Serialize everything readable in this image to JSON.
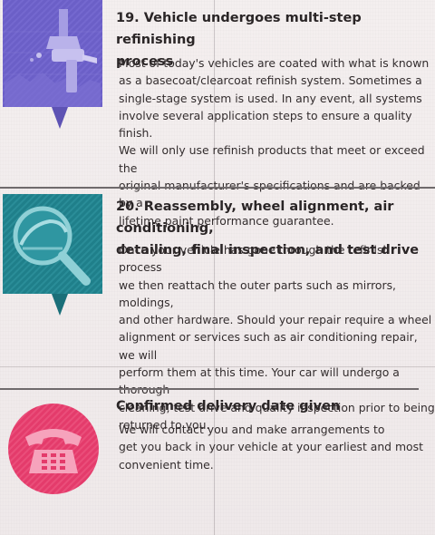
{
  "steps": [
    {
      "heading_line1": "19. Vehicle undergoes multi-step refinishing",
      "heading_line2": "process",
      "body_lines": [
        "Most of today's vehicles are coated with what is known",
        "as a basecoat/clearcoat refinish system.  Sometimes a",
        "single-stage system is used.  In any event, all systems",
        "involve several application steps to ensure a quality finish.",
        "We will only use refinish products that meet or exceed the",
        "original manufacturer's specifications and are backed by a",
        "lifetime paint performance guarantee."
      ],
      "icon": "spray-gun-icon",
      "icon_color": "#6b5fc7"
    },
    {
      "heading_line1": "20. Reassembly, wheel alignment, air conditioning,",
      "heading_line2": "detailing, final inspection, and test drive",
      "body_lines": [
        "Once your vehicle has gone through the refinish process",
        "we then reattach the outer parts such as mirrors, moldings,",
        "and other hardware. Should your repair require a wheel",
        "alignment or services such as air conditioning repair, we will",
        "perform them at this time.  Your car will undergo a thorough",
        "cleaning, test drive and quality inspection prior to being",
        "returned to you."
      ],
      "icon": "magnifier-car-icon",
      "icon_color": "#1f7f8a"
    },
    {
      "heading_line1": "Confirmed delivery date given",
      "body_lines": [
        "We will contact you and make arrangements to",
        "get you back in your vehicle at your earliest and most",
        "convenient time."
      ],
      "icon": "telephone-icon",
      "icon_color": "#e43b6b"
    }
  ]
}
